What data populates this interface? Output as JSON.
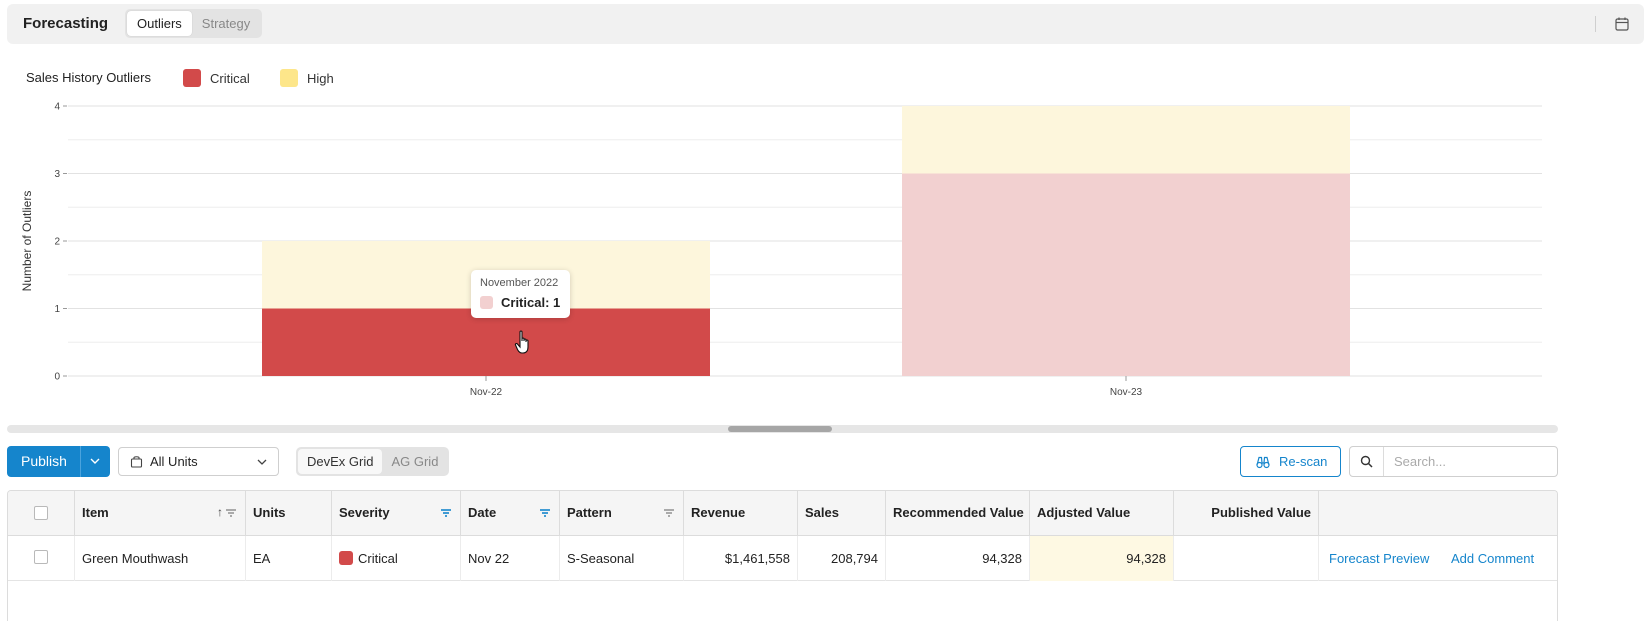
{
  "header": {
    "title": "Forecasting",
    "tabs": [
      {
        "label": "Outliers",
        "active": true
      },
      {
        "label": "Strategy",
        "active": false
      }
    ]
  },
  "chart_data": {
    "type": "bar",
    "stacked": true,
    "title": "Sales History Outliers",
    "xlabel": "",
    "ylabel": "Number of Outliers",
    "categories": [
      "Nov-22",
      "Nov-23"
    ],
    "series": [
      {
        "name": "Critical",
        "values": [
          1,
          3
        ],
        "color": "#d24a4a"
      },
      {
        "name": "High",
        "values": [
          1,
          1
        ],
        "color": "#fde68a"
      }
    ],
    "yticks": [
      0,
      1,
      2,
      3,
      4
    ],
    "ylim": [
      0,
      4
    ],
    "grid": true,
    "legend": "top-left",
    "hovered": "Nov-22 Critical"
  },
  "tooltip": {
    "title": "November 2022",
    "value": "Critical: 1"
  },
  "toolbar": {
    "publish_label": "Publish",
    "units_value": "All Units",
    "grid_options": [
      {
        "label": "DevEx Grid",
        "active": true
      },
      {
        "label": "AG Grid",
        "active": false
      }
    ],
    "rescan_label": "Re-scan",
    "search_placeholder": "Search..."
  },
  "table": {
    "columns": [
      "Item",
      "Units",
      "Severity",
      "Date",
      "Pattern",
      "Revenue",
      "Sales",
      "Recommended Value",
      "Adjusted Value",
      "Published Value"
    ],
    "sorted_column": "Item",
    "sort_icon": "↑",
    "filtered_columns": [
      "Severity",
      "Date"
    ],
    "rows": [
      {
        "item": "Green Mouthwash",
        "units": "EA",
        "severity": "Critical",
        "date": "Nov 22",
        "pattern": "S-Seasonal",
        "revenue": "$1,461,558",
        "sales": "208,794",
        "recommended": "94,328",
        "adjusted": "94,328",
        "published": "",
        "action1": "Forecast Preview",
        "action2": "Add Comment"
      }
    ]
  },
  "colors": {
    "accent": "#1585cc",
    "critical": "#d24a4a",
    "high": "#fde68a",
    "critical_dim": "#f2d0d0",
    "high_dim": "#fdf6dc"
  }
}
